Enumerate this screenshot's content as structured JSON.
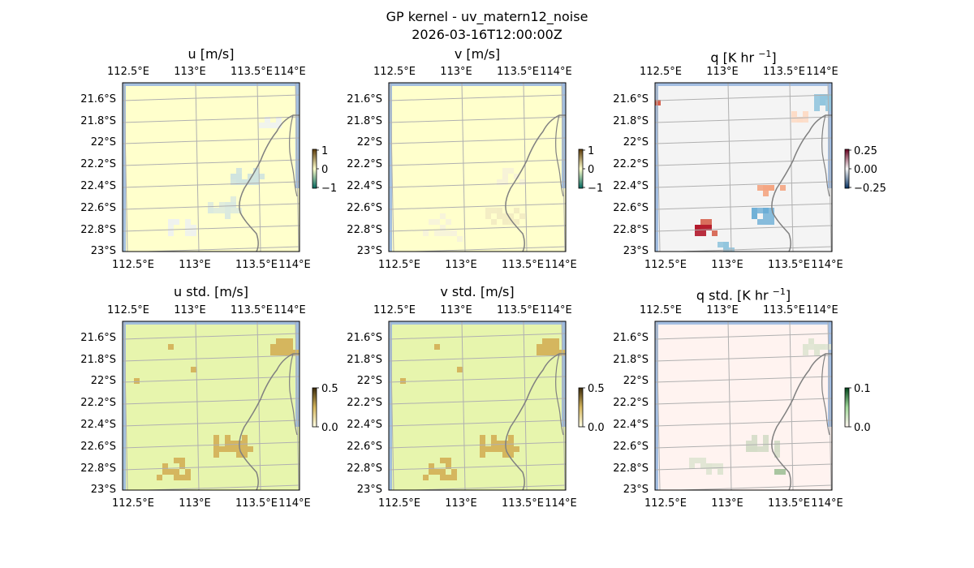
{
  "figure": {
    "title_line1": "GP kernel - uv_matern12_noise",
    "title_line2": "2026-03-16T12:00:00Z"
  },
  "colors": {
    "land_yellow": "#ffffcc",
    "std_yellowgreen": "#e7f5ad",
    "std_tan": "#d5b65e",
    "q_grey": "#f4f4f4",
    "q_std_pink": "#fff3f0",
    "ocean_blue": "#9ab8e0",
    "coast_grey": "#808080",
    "grid_grey": "#b0b0b0"
  },
  "chart_data": [
    {
      "type": "heatmap",
      "title": "u [m/s]",
      "x_ticks": [
        "112.5°E",
        "113°E",
        "113.5°E",
        "114°E"
      ],
      "y_ticks": [
        "21.6°S",
        "21.8°S",
        "22°S",
        "22.2°S",
        "22.4°S",
        "22.6°S",
        "22.8°S",
        "23°S"
      ],
      "xlim": [
        112.5,
        114.2
      ],
      "ylim": [
        -23.0,
        -21.45
      ],
      "colorbar": {
        "ticks": [
          "1",
          "0",
          "−1"
        ],
        "range": [
          -1,
          1
        ]
      },
      "grid": true
    },
    {
      "type": "heatmap",
      "title": "v [m/s]",
      "x_ticks": [
        "112.5°E",
        "113°E",
        "113.5°E",
        "114°E"
      ],
      "y_ticks": [
        "21.6°S",
        "21.8°S",
        "22°S",
        "22.2°S",
        "22.4°S",
        "22.6°S",
        "22.8°S",
        "23°S"
      ],
      "xlim": [
        112.5,
        114.2
      ],
      "ylim": [
        -23.0,
        -21.45
      ],
      "colorbar": {
        "ticks": [
          "1",
          "0",
          "−1"
        ],
        "range": [
          -1,
          1
        ]
      },
      "grid": true
    },
    {
      "type": "heatmap",
      "title": "q [K hr −1]",
      "x_ticks": [
        "112.5°E",
        "113°E",
        "113.5°E",
        "114°E"
      ],
      "y_ticks": [
        "21.6°S",
        "21.8°S",
        "22°S",
        "22.2°S",
        "22.4°S",
        "22.6°S",
        "22.8°S",
        "23°S"
      ],
      "xlim": [
        112.5,
        114.2
      ],
      "ylim": [
        -23.0,
        -21.45
      ],
      "colorbar": {
        "ticks": [
          "0.25",
          "0.00",
          "−0.25"
        ],
        "range": [
          -0.25,
          0.25
        ]
      },
      "grid": true
    },
    {
      "type": "heatmap",
      "title": "u std. [m/s]",
      "x_ticks": [
        "112.5°E",
        "113°E",
        "113.5°E",
        "114°E"
      ],
      "y_ticks": [
        "21.6°S",
        "21.8°S",
        "22°S",
        "22.2°S",
        "22.4°S",
        "22.6°S",
        "22.8°S",
        "23°S"
      ],
      "xlim": [
        112.5,
        114.2
      ],
      "ylim": [
        -23.0,
        -21.45
      ],
      "colorbar": {
        "ticks": [
          "0.5",
          "0.0"
        ],
        "range": [
          0,
          0.5
        ]
      },
      "grid": true
    },
    {
      "type": "heatmap",
      "title": "v std. [m/s]",
      "x_ticks": [
        "112.5°E",
        "113°E",
        "113.5°E",
        "114°E"
      ],
      "y_ticks": [
        "21.6°S",
        "21.8°S",
        "22°S",
        "22.2°S",
        "22.4°S",
        "22.6°S",
        "22.8°S",
        "23°S"
      ],
      "xlim": [
        112.5,
        114.2
      ],
      "ylim": [
        -23.0,
        -21.45
      ],
      "colorbar": {
        "ticks": [
          "0.5",
          "0.0"
        ],
        "range": [
          0,
          0.5
        ]
      },
      "grid": true
    },
    {
      "type": "heatmap",
      "title": "q std. [K hr −1]",
      "x_ticks": [
        "112.5°E",
        "113°E",
        "113.5°E",
        "114°E"
      ],
      "y_ticks": [
        "21.6°S",
        "21.8°S",
        "22°S",
        "22.2°S",
        "22.4°S",
        "22.6°S",
        "22.8°S",
        "23°S"
      ],
      "xlim": [
        112.5,
        114.2
      ],
      "ylim": [
        -23.0,
        -21.45
      ],
      "colorbar": {
        "ticks": [
          "0.1",
          "0.0"
        ],
        "range": [
          0,
          0.1
        ]
      },
      "grid": true
    }
  ]
}
